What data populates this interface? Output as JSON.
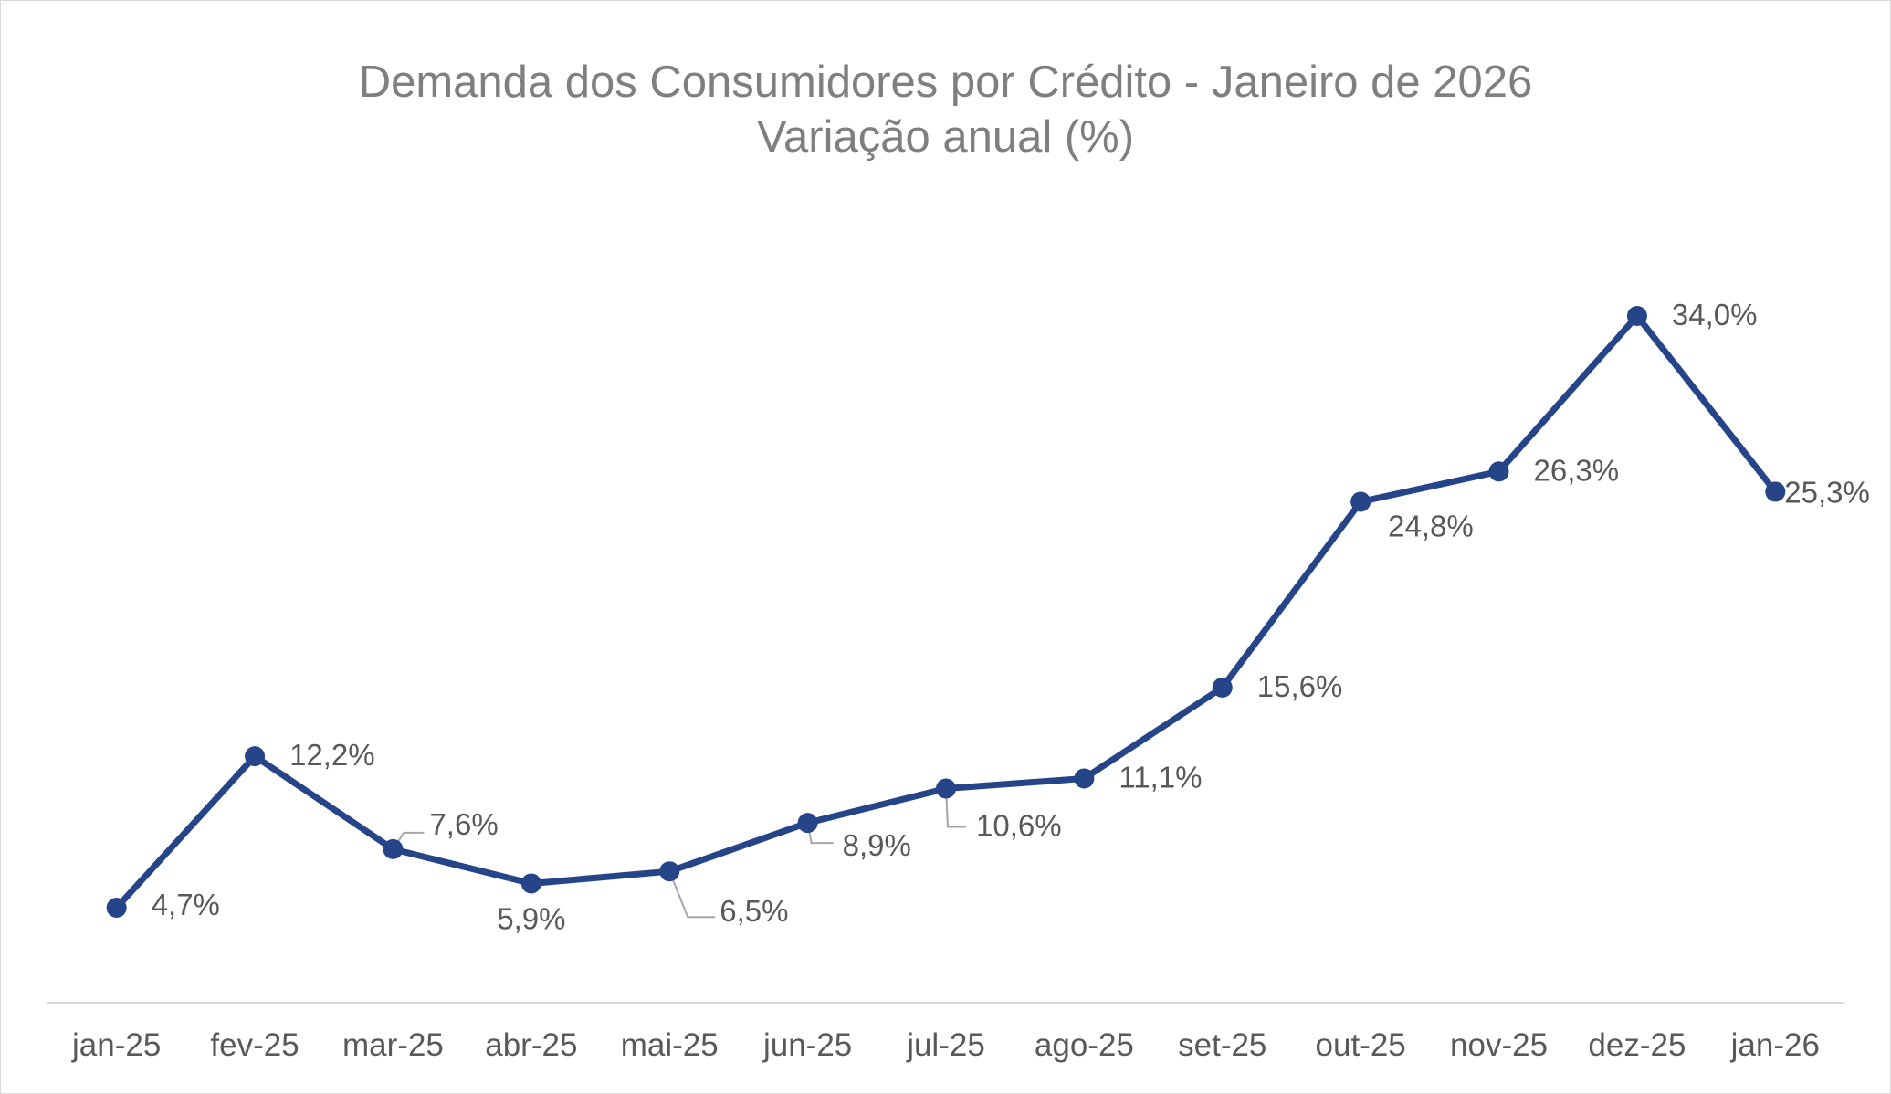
{
  "chart_data": {
    "type": "line",
    "title": "Demanda dos Consumidores por Crédito - Janeiro de 2026",
    "subtitle": "Variação anual (%)",
    "xlabel": "",
    "ylabel": "",
    "categories": [
      "jan-25",
      "fev-25",
      "mar-25",
      "abr-25",
      "mai-25",
      "jun-25",
      "jul-25",
      "ago-25",
      "set-25",
      "out-25",
      "nov-25",
      "dez-25",
      "jan-26"
    ],
    "series": [
      {
        "name": "Demanda dos Consumidores por Crédito",
        "values": [
          4.7,
          12.2,
          7.6,
          5.9,
          6.5,
          8.9,
          10.6,
          11.1,
          15.6,
          24.8,
          26.3,
          34.0,
          25.3
        ],
        "labels": [
          "4,7%",
          "12,2%",
          "7,6%",
          "5,9%",
          "6,5%",
          "8,9%",
          "10,6%",
          "11,1%",
          "15,6%",
          "24,8%",
          "26,3%",
          "34,0%",
          "25,3%"
        ]
      }
    ],
    "ylim": [
      0,
      36
    ],
    "grid": false,
    "legend": "none",
    "colors": {
      "line": "#264589",
      "marker": "#264589",
      "axis": "#d9d9d9",
      "text": "#595959",
      "title": "#7f7f7f",
      "leader": "#a6a6a6"
    }
  }
}
